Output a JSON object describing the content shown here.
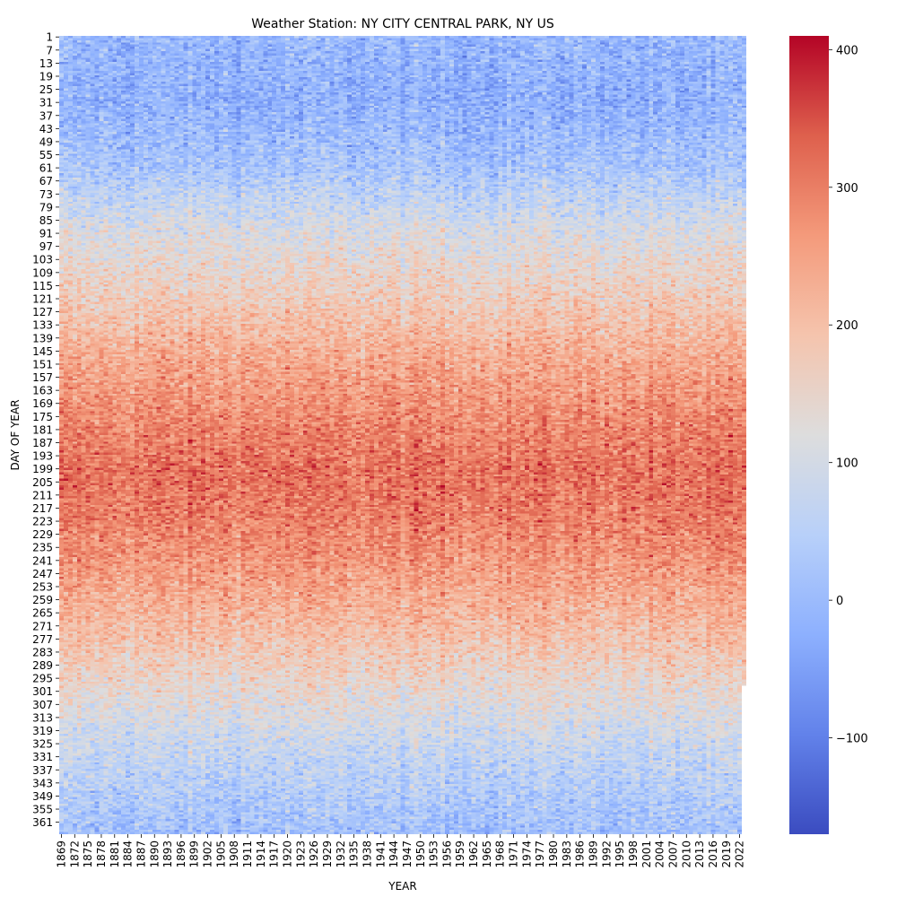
{
  "chart_data": {
    "type": "heatmap",
    "title": "Weather Station: NY CITY CENTRAL PARK, NY US",
    "xlabel": "YEAR",
    "ylabel": "DAY OF YEAR",
    "x_range": [
      1869,
      2023
    ],
    "y_range": [
      1,
      366
    ],
    "x_tick_labels": [
      "1869",
      "1872",
      "1875",
      "1878",
      "1881",
      "1884",
      "1887",
      "1890",
      "1893",
      "1896",
      "1899",
      "1902",
      "1905",
      "1908",
      "1911",
      "1914",
      "1917",
      "1920",
      "1923",
      "1926",
      "1929",
      "1932",
      "1935",
      "1938",
      "1941",
      "1944",
      "1947",
      "1950",
      "1953",
      "1956",
      "1959",
      "1962",
      "1965",
      "1968",
      "1971",
      "1974",
      "1977",
      "1980",
      "1983",
      "1986",
      "1989",
      "1992",
      "1995",
      "1998",
      "2001",
      "2004",
      "2007",
      "2010",
      "2013",
      "2016",
      "2019",
      "2022"
    ],
    "y_tick_labels": [
      "1",
      "7",
      "13",
      "19",
      "25",
      "31",
      "37",
      "43",
      "49",
      "55",
      "61",
      "67",
      "73",
      "79",
      "85",
      "91",
      "97",
      "103",
      "109",
      "115",
      "121",
      "127",
      "133",
      "139",
      "145",
      "151",
      "157",
      "163",
      "169",
      "175",
      "181",
      "187",
      "193",
      "199",
      "205",
      "211",
      "217",
      "223",
      "229",
      "235",
      "241",
      "247",
      "253",
      "259",
      "265",
      "271",
      "277",
      "283",
      "289",
      "295",
      "301",
      "307",
      "313",
      "319",
      "325",
      "331",
      "337",
      "343",
      "349",
      "355",
      "361"
    ],
    "colorbar": {
      "colormap": "coolwarm",
      "vmin": -170,
      "vmax": 410,
      "ticks": [
        -100,
        0,
        100,
        200,
        300,
        400
      ],
      "tick_labels": [
        "−100",
        "0",
        "100",
        "200",
        "300",
        "400"
      ]
    },
    "seasonal_profile": {
      "description_free": true,
      "day_of_year": [
        1,
        30,
        60,
        90,
        120,
        150,
        180,
        200,
        220,
        240,
        270,
        300,
        330,
        366
      ],
      "typical_value": [
        -5,
        -20,
        20,
        110,
        170,
        240,
        290,
        315,
        300,
        270,
        210,
        140,
        70,
        10
      ]
    },
    "last_year_ends_at_day": 298
  }
}
